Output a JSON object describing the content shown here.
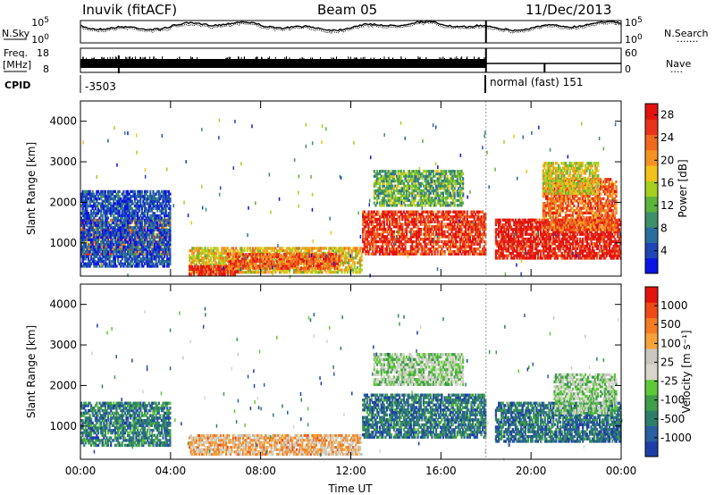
{
  "header": {
    "title": "Inuvik (fitACF)",
    "beam": "Beam 05",
    "date": "11/Dec/2013"
  },
  "side_labels": {
    "nsky": "N.Sky",
    "nsearch": "N.Search",
    "nsearch_dots": "·······",
    "freq_line1": "Freq.",
    "freq_line2": "[MHz]",
    "nave": "Nave",
    "nave_dots": "····",
    "cpid": "CPID"
  },
  "noise_panel": {
    "left_ticks": [
      "10^5",
      "10^0"
    ],
    "right_ticks": [
      "10^5",
      "10^0"
    ]
  },
  "freq_panel": {
    "left_ticks": [
      "18",
      "8"
    ],
    "right_ticks": [
      "60",
      "0"
    ]
  },
  "cpid_panel": {
    "cpid_1": "-3503",
    "cpid_2": "normal (fast) 151",
    "mode_change_hour": 18
  },
  "colors": {
    "power_scale": [
      "#0a14e6",
      "#1e46b4",
      "#2a6e9e",
      "#3f8f6a",
      "#5cb43c",
      "#a6d020",
      "#f2c21c",
      "#f59322",
      "#ef6a1e",
      "#e8341a",
      "#e3130f"
    ],
    "velocity_scale": [
      "#e3130f",
      "#ef4a18",
      "#f47d22",
      "#f6a23a",
      "#c8c8c0",
      "#d6d6cc",
      "#5ec838",
      "#3f9e48",
      "#2e7f6a",
      "#2a5fa0",
      "#1e3ea6"
    ]
  },
  "chart_data": [
    {
      "type": "heatmap",
      "name": "power",
      "ylabel": "Slant Range [km]",
      "xlabel": "",
      "x_ticks": [
        "00:00",
        "04:00",
        "08:00",
        "12:00",
        "16:00",
        "20:00",
        "00:00"
      ],
      "y_ticks": [
        1000,
        2000,
        3000,
        4000
      ],
      "xlim": [
        0,
        24
      ],
      "ylim": [
        180,
        4500
      ],
      "colorbar": {
        "label": "Power [dB]",
        "ticks": [
          4,
          8,
          12,
          16,
          20,
          24,
          28
        ],
        "range": [
          0,
          30
        ]
      },
      "regions": [
        {
          "t0": 0.0,
          "t1": 4.0,
          "r0": 700,
          "r1": 1600,
          "level": 0.72
        },
        {
          "t0": 0.0,
          "t1": 4.0,
          "r0": 400,
          "r1": 2300,
          "level": 0.15
        },
        {
          "t0": 4.8,
          "t1": 12.5,
          "r0": 250,
          "r1": 900,
          "level": 0.6
        },
        {
          "t0": 4.8,
          "t1": 7.0,
          "r0": 200,
          "r1": 450,
          "level": 0.92
        },
        {
          "t0": 6.5,
          "t1": 11.5,
          "r0": 350,
          "r1": 750,
          "level": 0.8
        },
        {
          "t0": 12.5,
          "t1": 18.0,
          "r0": 700,
          "r1": 1800,
          "level": 0.88
        },
        {
          "t0": 13.0,
          "t1": 17.0,
          "r0": 1900,
          "r1": 2800,
          "level": 0.4
        },
        {
          "t0": 18.4,
          "t1": 24.0,
          "r0": 600,
          "r1": 1600,
          "level": 0.95
        },
        {
          "t0": 20.5,
          "t1": 23.8,
          "r0": 1300,
          "r1": 2600,
          "level": 0.78
        },
        {
          "t0": 20.5,
          "t1": 23.0,
          "r0": 2200,
          "r1": 3000,
          "level": 0.55
        }
      ]
    },
    {
      "type": "heatmap",
      "name": "velocity",
      "ylabel": "Slant Range [km]",
      "xlabel": "Time UT",
      "x_ticks": [
        "00:00",
        "04:00",
        "08:00",
        "12:00",
        "16:00",
        "20:00",
        "00:00"
      ],
      "y_ticks": [
        1000,
        2000,
        3000,
        4000
      ],
      "xlim": [
        0,
        24
      ],
      "ylim": [
        180,
        4500
      ],
      "colorbar": {
        "label": "Velocity [m s⁻¹]",
        "ticks": [
          1000,
          500,
          100,
          25,
          -25,
          -100,
          -500,
          -1000
        ]
      },
      "regions": [
        {
          "t0": 0.0,
          "t1": 4.0,
          "r0": 500,
          "r1": 1600,
          "level": 0.22
        },
        {
          "t0": 4.8,
          "t1": 12.5,
          "r0": 280,
          "r1": 800,
          "level": 0.66
        },
        {
          "t0": 12.5,
          "t1": 18.0,
          "r0": 700,
          "r1": 1800,
          "level": 0.2
        },
        {
          "t0": 13.0,
          "t1": 17.0,
          "r0": 2000,
          "r1": 2800,
          "level": 0.46
        },
        {
          "t0": 18.4,
          "t1": 24.0,
          "r0": 600,
          "r1": 1600,
          "level": 0.18
        },
        {
          "t0": 21.0,
          "t1": 23.8,
          "r0": 1300,
          "r1": 2300,
          "level": 0.45
        }
      ]
    }
  ],
  "time_label": "Time UT"
}
